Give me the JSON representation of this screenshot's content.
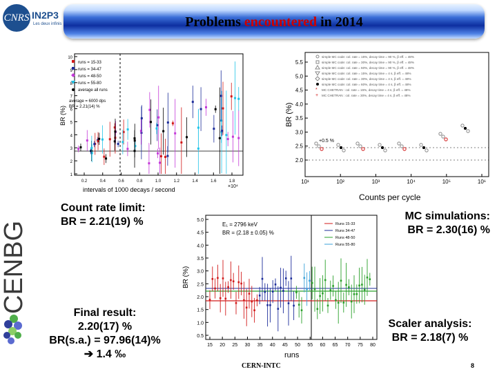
{
  "header": {
    "title_part1": "Problems ",
    "title_part2": "encountered",
    "title_part3": " in 2014",
    "cnrs_logo": "CNRS",
    "in2p3_logo": "IN2P3",
    "in2p3_tagline": "Les deux infinis",
    "cenbg_logo": "CENBG",
    "accent_red": "#cc0000",
    "bar_blue": "#0d2fa0"
  },
  "plot_rate": {
    "legend": [
      "runs = 15-33",
      "runs = 34-47",
      "runs = 48-50",
      "runs = 55-80",
      "average all runs"
    ],
    "note1": "average = 6000 dps",
    "note2": "BR = 2.21(14) %",
    "ylabel": "BR (%)",
    "xlabel": "intervals of 1000 decays / second",
    "xscale": "×10⁴",
    "xticks": [
      "0.2",
      "0.4",
      "0.6",
      "0.8",
      "1.0",
      "1.2",
      "1.4",
      "1.6",
      "1.8"
    ],
    "yticks": [
      "1",
      "2",
      "3",
      "4",
      "5",
      "6",
      "7",
      "8",
      "9",
      "10"
    ]
  },
  "plot_mc": {
    "legend": [
      "simple MC code: col. rate = 15%, decay time = 90 %, β eff. = 48%",
      "simple MC code: col. rate = 30%, decay time = 90 %, β eff. = 48%",
      "simple MC code: col. rate = 60%, decay time = 90 %, β eff. = 48%",
      "simple MC code: col. rate = 15%, decay time = 4 s, β eff. = 48%",
      "simple MC code: col. rate = 30%, decay time = 4 s, β eff. = 48%",
      "simple MC code: col. rate = 60%, decay time = 4 s, β eff. = 48%",
      "MC CHETRAN  : col. rate = 15%, decay time = 4 s, β eff. = 48%",
      "MC CHETRAN  : col. rate = 30%, decay time = 4 s, β eff. = 48%"
    ],
    "ylabel": "BR (%)",
    "xlabel": "Counts per cycle",
    "yticks": [
      "2.0",
      "2.5",
      "3.0",
      "3.5",
      "4.0",
      "4.5",
      "5.0",
      "5.5"
    ],
    "xticks": [
      "10¹",
      "10²",
      "10³",
      "10⁴",
      "10⁵",
      "10⁶"
    ],
    "annotation": "+0.5 %"
  },
  "plot_runs": {
    "info1": "E₁ = 2796 keV",
    "info2": "BR = (2.18 ± 0.05) %",
    "legend": [
      "Runs 15-33",
      "Runs 34-47",
      "Runs 48-50",
      "Runs 55-80"
    ],
    "ylabel": "BR (%)",
    "xlabel": "runs",
    "xticks": [
      "15",
      "20",
      "25",
      "30",
      "35",
      "40",
      "45",
      "50",
      "55",
      "60",
      "65",
      "70",
      "75",
      "80"
    ],
    "yticks": [
      "0.5",
      "1.0",
      "1.5",
      "2.0",
      "2.5",
      "3.0",
      "3.5",
      "4.0",
      "4.5",
      "5.0"
    ]
  },
  "labels": {
    "count_rate_1": "Count rate limit:",
    "count_rate_2": "BR = 2.21(19) %",
    "mc_1": "MC simulations:",
    "mc_2": "BR = 2.30(16) %",
    "final_1": "Final result:",
    "final_2": "2.20(17) %",
    "final_3": "BR(s.a.) = 97.96(14)%",
    "final_4": "1.4 ‰",
    "final_arrow": "➔",
    "scaler_1": "Scaler analysis:",
    "scaler_2": "BR = 2.18(7) %"
  },
  "footer": {
    "text": "CERN-INTC",
    "page": "8"
  }
}
